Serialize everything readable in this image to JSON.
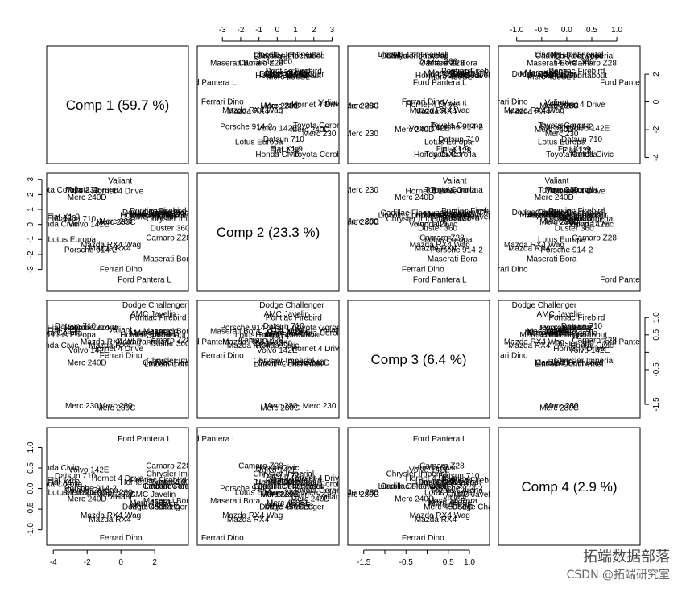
{
  "chart_data": {
    "type": "scatter",
    "kind": "pairs-matrix",
    "grid": false,
    "variables": [
      "Comp 1 (59.7 %)",
      "Comp 2 (23.3 %)",
      "Comp 3 (6.4 %)",
      "Comp 4 (2.9 %)"
    ],
    "ranges": [
      [
        -4.2,
        3.8
      ],
      [
        -4.2,
        3.2
      ],
      [
        -1.8,
        1.4
      ],
      [
        -1.3,
        1.4
      ]
    ],
    "ticks": [
      [
        -4,
        -2,
        0,
        2
      ],
      [
        -3,
        -2,
        -1,
        0,
        1,
        2,
        3
      ],
      [
        -1.5,
        -1.0,
        -0.5,
        0.0,
        0.5,
        1.0
      ],
      [
        -1.0,
        -0.5,
        0.0,
        0.5,
        1.0
      ]
    ],
    "tick_labels": [
      [
        "-4",
        "-2",
        "0",
        "2"
      ],
      [
        "-3",
        "-2",
        "-1",
        "0",
        "1",
        "2",
        "3"
      ],
      [
        "-1.5",
        "-0.5",
        "0.5",
        "1.0"
      ],
      [
        "-1.0",
        "-0.5",
        "0.0",
        "0.5",
        "1.0"
      ]
    ],
    "cars": [
      {
        "name": "Mazda RX4",
        "comp": [
          -0.65,
          -1.6,
          0.2,
          -0.75
        ]
      },
      {
        "name": "Mazda RX4 Wag",
        "comp": [
          -0.6,
          -1.35,
          0.3,
          -0.65
        ]
      },
      {
        "name": "Datsun 710",
        "comp": [
          -2.7,
          0.35,
          0.75,
          0.3
        ]
      },
      {
        "name": "Hornet 4 Drive",
        "comp": [
          -0.2,
          2.2,
          0.1,
          0.25
        ]
      },
      {
        "name": "Hornet Sportabout",
        "comp": [
          1.9,
          0.6,
          0.5,
          0.15
        ]
      },
      {
        "name": "Valiant",
        "comp": [
          -0.05,
          2.9,
          0.65,
          -0.2
        ]
      },
      {
        "name": "Duster 360",
        "comp": [
          2.9,
          -0.25,
          0.25,
          0.15
        ]
      },
      {
        "name": "Merc 240D",
        "comp": [
          -2.0,
          1.8,
          -0.3,
          -0.25
        ]
      },
      {
        "name": "Merc 230",
        "comp": [
          -2.3,
          2.3,
          -1.55,
          -0.1
        ]
      },
      {
        "name": "Merc 280",
        "comp": [
          -0.3,
          0.2,
          -1.55,
          -0.1
        ]
      },
      {
        "name": "Merc 280C",
        "comp": [
          -0.3,
          0.15,
          -1.6,
          -0.15
        ]
      },
      {
        "name": "Merc 450SE",
        "comp": [
          2.1,
          0.6,
          0.55,
          -0.4
        ]
      },
      {
        "name": "Merc 450SL",
        "comp": [
          1.8,
          0.6,
          0.55,
          -0.35
        ]
      },
      {
        "name": "Merc 450SLC",
        "comp": [
          2.0,
          0.65,
          0.5,
          -0.45
        ]
      },
      {
        "name": "Cadillac Fleetwood",
        "comp": [
          3.3,
          0.75,
          -0.3,
          0.05
        ]
      },
      {
        "name": "Lincoln Continental",
        "comp": [
          3.4,
          0.6,
          -0.35,
          0.05
        ]
      },
      {
        "name": "Chrysler Imperial",
        "comp": [
          3.3,
          0.35,
          -0.25,
          0.35
        ]
      },
      {
        "name": "Fiat 128",
        "comp": [
          -3.5,
          0.4,
          0.7,
          0.2
        ]
      },
      {
        "name": "Honda Civic",
        "comp": [
          -3.8,
          0.0,
          0.2,
          0.5
        ]
      },
      {
        "name": "Toyota Corolla",
        "comp": [
          -3.8,
          2.3,
          0.55,
          0.1
        ]
      },
      {
        "name": "Toyota Corona",
        "comp": [
          -1.7,
          2.3,
          0.7,
          -0.05
        ]
      },
      {
        "name": "Dodge Challenger",
        "comp": [
          2.0,
          0.8,
          1.35,
          -0.45
        ]
      },
      {
        "name": "AMC Javelin",
        "comp": [
          1.9,
          0.5,
          1.1,
          -0.15
        ]
      },
      {
        "name": "Camaro Z28",
        "comp": [
          2.8,
          -0.9,
          0.35,
          0.55
        ]
      },
      {
        "name": "Pontiac Firebird",
        "comp": [
          2.2,
          0.9,
          1.0,
          0.2
        ]
      },
      {
        "name": "Fiat X1-9",
        "comp": [
          -3.4,
          0.5,
          0.6,
          0.15
        ]
      },
      {
        "name": "Porsche 914-2",
        "comp": [
          -1.8,
          -1.7,
          0.7,
          0.0
        ]
      },
      {
        "name": "Lotus Europa",
        "comp": [
          -2.9,
          -1.0,
          0.5,
          -0.1
        ]
      },
      {
        "name": "Ford Pantera L",
        "comp": [
          1.4,
          -3.7,
          0.3,
          1.2
        ]
      },
      {
        "name": "Ferrari Dino",
        "comp": [
          0.0,
          -3.0,
          -0.1,
          -1.2
        ]
      },
      {
        "name": "Maserati Bora",
        "comp": [
          2.8,
          -2.3,
          0.6,
          -0.3
        ]
      },
      {
        "name": "Volvo 142E",
        "comp": [
          -1.9,
          0.0,
          0.05,
          0.45
        ]
      }
    ]
  },
  "watermark": {
    "line1": "拓端数据部落",
    "line2": "CSDN @拓端研究室"
  }
}
